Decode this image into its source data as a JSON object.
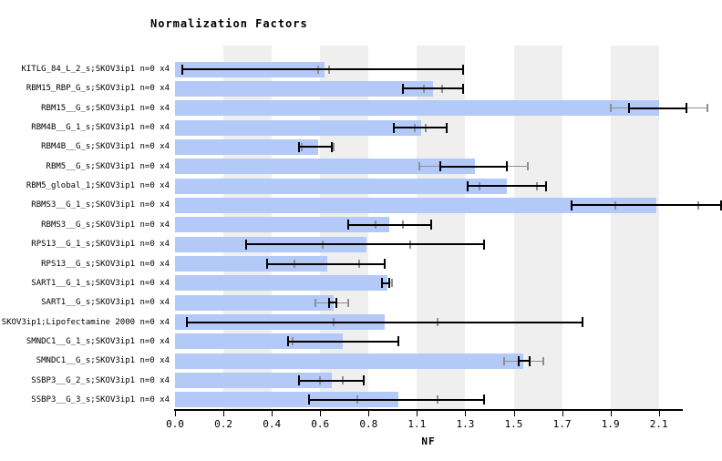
{
  "chart_data": {
    "type": "bar",
    "orientation": "horizontal",
    "title": "Normalization Factors",
    "xlabel": "NF",
    "xlim": [
      0,
      2.2
    ],
    "grid": "alternating-vertical-bands",
    "legend": "none",
    "tick_step": 0.21,
    "tick_labels": [
      "0.0",
      "0.2",
      "0.4",
      "0.6",
      "0.8",
      "1.1",
      "1.3",
      "1.5",
      "1.7",
      "1.9",
      "2.1"
    ],
    "categories": [
      "KITLG_84_L_2_s;SKOV3ip1 n=0 x4",
      "RBM15_RBP_G_s;SKOV3ip1 n=0 x4",
      "RBM15__G_s;SKOV3ip1 n=0 x4",
      "RBM4B__G_1_s;SKOV3ip1 n=0 x4",
      "RBM4B__G_s;SKOV3ip1 n=0 x4",
      "RBM5__G_s;SKOV3ip1 n=0 x4",
      "RBM5_global_1;SKOV3ip1 n=0 x4",
      "RBMS3__G_1_s;SKOV3ip1 n=0 x4",
      "RBMS3__G_s;SKOV3ip1 n=0 x4",
      "RPS13__G_1_s;SKOV3ip1 n=0 x4",
      "RPS13__G_s;SKOV3ip1 n=0 x4",
      "SART1__G_1_s;SKOV3ip1 n=0 x4",
      "SART1__G_s;SKOV3ip1 n=0 x4",
      "SKOV3ip1;Lipofectamine 2000 n=0 x4",
      "SMNDC1__G_1_s;SKOV3ip1 n=0 x4",
      "SMNDC1__G_s;SKOV3ip1 n=0 x4",
      "SSBP3__G_2_s;SKOV3ip1 n=0 x4",
      "SSBP3__G_3_s;SKOV3ip1 n=0 x4"
    ],
    "values": [
      0.65,
      1.12,
      2.1,
      1.07,
      0.62,
      1.3,
      1.44,
      2.09,
      0.93,
      0.83,
      0.66,
      0.92,
      0.69,
      0.91,
      0.73,
      1.51,
      0.68,
      0.97
    ],
    "error_low": [
      0.03,
      0.99,
      1.97,
      0.95,
      0.54,
      1.15,
      1.27,
      1.72,
      0.75,
      0.31,
      0.4,
      0.9,
      0.67,
      0.05,
      0.49,
      1.49,
      0.54,
      0.58
    ],
    "error_high": [
      1.25,
      1.25,
      2.22,
      1.18,
      0.68,
      1.44,
      1.61,
      2.37,
      1.11,
      1.34,
      0.91,
      0.93,
      0.7,
      1.77,
      0.97,
      1.54,
      0.82,
      1.34
    ],
    "gray_low": [
      0.62,
      1.08,
      1.89,
      1.04,
      0.55,
      1.06,
      1.32,
      1.91,
      0.87,
      0.64,
      0.52,
      null,
      0.61,
      0.69,
      0.51,
      1.43,
      0.63,
      0.79
    ],
    "gray_high": [
      0.67,
      1.16,
      2.31,
      1.09,
      0.69,
      1.53,
      1.57,
      2.27,
      0.99,
      1.02,
      0.8,
      0.94,
      0.75,
      1.14,
      null,
      1.6,
      0.73,
      1.14
    ],
    "colors": {
      "bar": "#b3c9f7",
      "band_gray": "#efefef",
      "error_bar": "#000000",
      "gray_tick": "#8f8f8f",
      "background": "#ffffff"
    }
  }
}
